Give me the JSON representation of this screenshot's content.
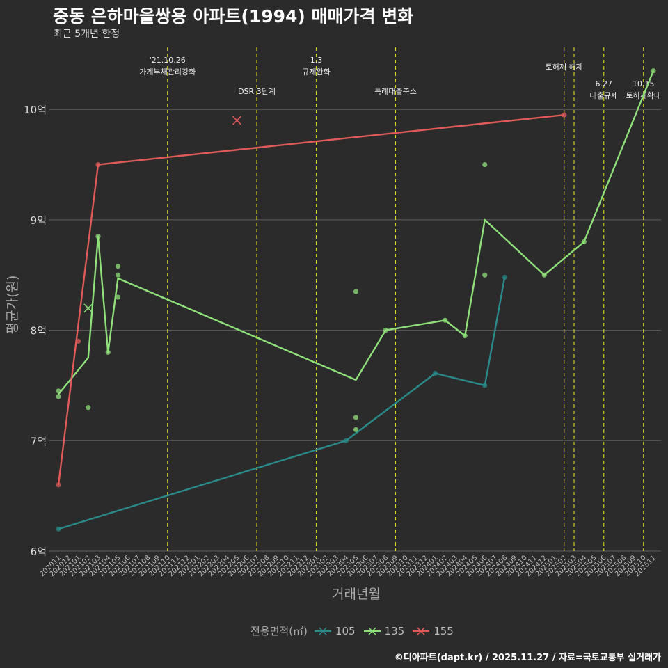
{
  "header": {
    "title": "중동 은하마을쌍용 아파트(1994) 매매가격 변화",
    "subtitle": "최근 5개년 한정"
  },
  "caption": "©디아파트(dapt.kr) / 2025.11.27 / 자료=국토교통부 실거래가",
  "chart_data": {
    "type": "line",
    "title": "중동 은하마을쌍용 아파트(1994) 매매가격 변화",
    "subtitle": "최근 5개년 한정",
    "xlabel": "거래년월",
    "ylabel": "평균가(원)",
    "ylim": [
      6,
      10.6
    ],
    "yticks": [
      6,
      7,
      8,
      9,
      10
    ],
    "ytick_labels": [
      "6억",
      "7억",
      "8억",
      "9억",
      "10억"
    ],
    "x_categories": [
      "202011",
      "202012",
      "202101",
      "202102",
      "202103",
      "202104",
      "202105",
      "202106",
      "202107",
      "202108",
      "202109",
      "202110",
      "202111",
      "202112",
      "202201",
      "202202",
      "202203",
      "202204",
      "202205",
      "202206",
      "202207",
      "202208",
      "202209",
      "202210",
      "202211",
      "202212",
      "202301",
      "202302",
      "202303",
      "202304",
      "202305",
      "202306",
      "202307",
      "202308",
      "202309",
      "202310",
      "202311",
      "202312",
      "202401",
      "202402",
      "202403",
      "202404",
      "202405",
      "202406",
      "202407",
      "202408",
      "202409",
      "202410",
      "202411",
      "202412",
      "202501",
      "202502",
      "202503",
      "202504",
      "202505",
      "202506",
      "202507",
      "202508",
      "202509",
      "202510",
      "202511"
    ],
    "legend_title": "전용면적(㎡)",
    "series": [
      {
        "name": "105",
        "color": "#2a8a8a",
        "line": [
          [
            "202011",
            6.2
          ],
          [
            "202304",
            7.0
          ],
          [
            "202401",
            7.61
          ],
          [
            "202406",
            7.5
          ],
          [
            "202408",
            8.48
          ]
        ],
        "points": [
          [
            "202011",
            6.2
          ],
          [
            "202304",
            7.0
          ],
          [
            "202401",
            7.61
          ],
          [
            "202406",
            7.5
          ],
          [
            "202408",
            8.48
          ]
        ]
      },
      {
        "name": "135",
        "color": "#8fe07a",
        "line": [
          [
            "202011",
            7.42
          ],
          [
            "202102",
            7.75
          ],
          [
            "202103",
            8.85
          ],
          [
            "202104",
            7.8
          ],
          [
            "202105",
            8.47
          ],
          [
            "202305",
            7.55
          ],
          [
            "202308",
            8.0
          ],
          [
            "202402",
            8.09
          ],
          [
            "202404",
            7.95
          ],
          [
            "202406",
            9.0
          ],
          [
            "202412",
            8.5
          ],
          [
            "202504",
            8.8
          ],
          [
            "202511",
            10.35
          ]
        ],
        "points": [
          [
            "202011",
            7.45
          ],
          [
            "202011",
            7.4
          ],
          [
            "202102",
            7.3
          ],
          [
            "202103",
            8.85
          ],
          [
            "202104",
            7.8
          ],
          [
            "202105",
            8.58
          ],
          [
            "202105",
            8.5
          ],
          [
            "202105",
            8.3
          ],
          [
            "202305",
            8.35
          ],
          [
            "202305",
            7.21
          ],
          [
            "202305",
            7.1
          ],
          [
            "202308",
            8.0
          ],
          [
            "202402",
            8.09
          ],
          [
            "202404",
            7.95
          ],
          [
            "202406",
            9.5
          ],
          [
            "202406",
            8.5
          ],
          [
            "202412",
            8.5
          ],
          [
            "202504",
            8.8
          ],
          [
            "202511",
            10.35
          ]
        ],
        "cancelled": [
          [
            "202102",
            8.2
          ]
        ]
      },
      {
        "name": "155",
        "color": "#e05a5a",
        "line": [
          [
            "202011",
            6.6
          ],
          [
            "202103",
            9.5
          ],
          [
            "202502",
            9.95
          ]
        ],
        "points": [
          [
            "202011",
            6.6
          ],
          [
            "202101",
            7.9
          ],
          [
            "202103",
            9.5
          ],
          [
            "202502",
            9.95
          ]
        ],
        "cancelled": [
          [
            "202205",
            9.9
          ]
        ]
      }
    ],
    "events": [
      {
        "month": "202110",
        "lines": [
          "'21.10.26",
          "가계부채관리강화"
        ],
        "row": 1
      },
      {
        "month": "202207",
        "lines": [
          "DSR 3단계"
        ],
        "row": 2
      },
      {
        "month": "202301",
        "lines": [
          "1.3",
          "규제완화"
        ],
        "row": 1
      },
      {
        "month": "202309",
        "lines": [
          "특례대출축소"
        ],
        "row": 2
      },
      {
        "month": "202502",
        "lines": [
          "토허제 해제"
        ],
        "row": 0
      },
      {
        "month": "202503",
        "lines": [],
        "row": 0
      },
      {
        "month": "202506",
        "lines": [
          "6.27",
          "대출규제"
        ],
        "row": 3
      },
      {
        "month": "202510",
        "lines": [
          "10.15",
          "토허제확대"
        ],
        "row": 3
      }
    ]
  }
}
